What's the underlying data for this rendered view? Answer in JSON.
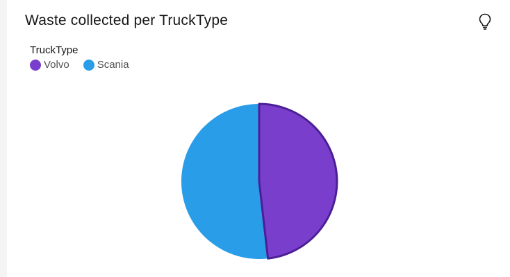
{
  "card": {
    "title": "Waste collected per TruckType",
    "insight_icon": "lightbulb-icon"
  },
  "legend": {
    "title": "TruckType",
    "items": [
      {
        "label": "Volvo",
        "color": "#7a3ecc"
      },
      {
        "label": "Scania",
        "color": "#2a9de8"
      }
    ]
  },
  "chart_data": {
    "type": "pie",
    "title": "Waste collected per TruckType",
    "legend_title": "TruckType",
    "legend_placement": "top-left",
    "categories": [
      "Volvo",
      "Scania"
    ],
    "values": [
      48.2,
      51.8
    ],
    "colors": [
      "#7a3ecc",
      "#2a9de8"
    ],
    "highlighted": "Volvo",
    "highlight_stroke": "#4b1f96"
  }
}
